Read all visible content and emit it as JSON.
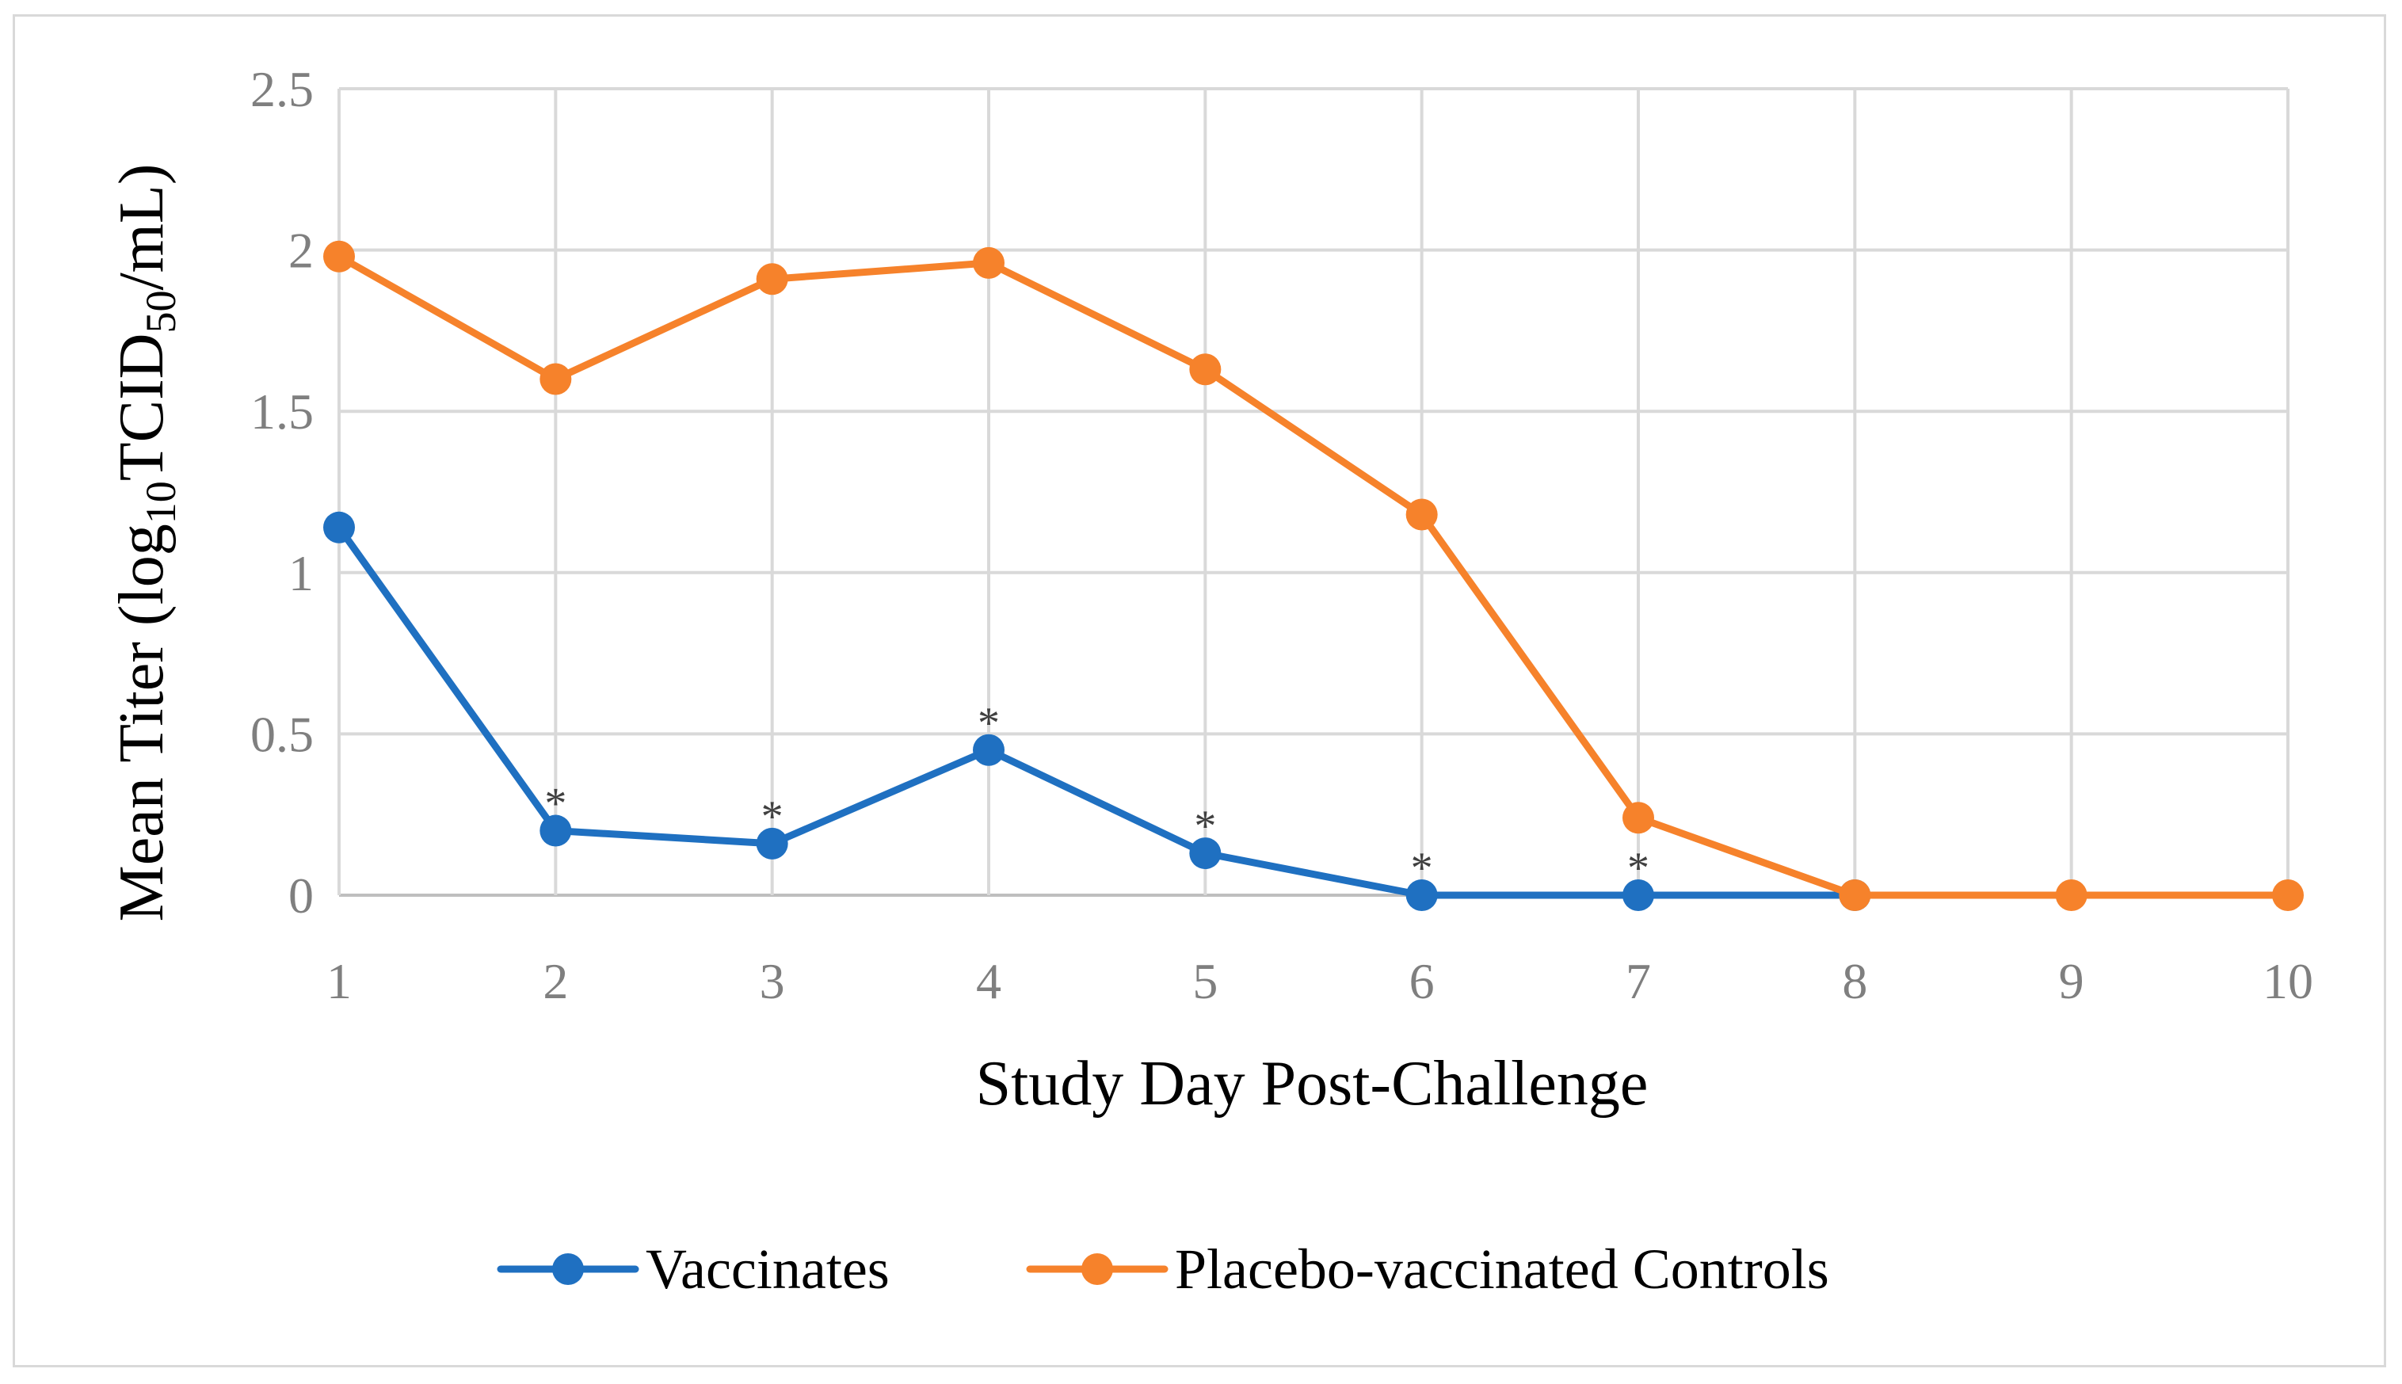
{
  "chart_data": {
    "type": "line",
    "title": "",
    "xlabel": "Study Day Post-Challenge",
    "ylabel_main": "Mean Titer (log",
    "ylabel_sub1": "10",
    "ylabel_mid": "TCID",
    "ylabel_sub2": "50",
    "ylabel_end": "/mL)",
    "x": [
      1,
      2,
      3,
      4,
      5,
      6,
      7,
      8,
      9,
      10
    ],
    "x_tick_labels": [
      "1",
      "2",
      "3",
      "4",
      "5",
      "6",
      "7",
      "8",
      "9",
      "10"
    ],
    "y_tick_labels": [
      "0",
      "0.5",
      "1",
      "1.5",
      "2",
      "2.5"
    ],
    "ylim": [
      0,
      2.5
    ],
    "yticks": [
      0,
      0.5,
      1,
      1.5,
      2,
      2.5
    ],
    "grid": true,
    "legend_position": "bottom",
    "series": [
      {
        "name": "Vaccinates",
        "color": "#1f70c1",
        "x": [
          1,
          2,
          3,
          4,
          5,
          6,
          7,
          8
        ],
        "values": [
          1.14,
          0.2,
          0.16,
          0.45,
          0.13,
          0.0,
          0.0,
          0.0
        ]
      },
      {
        "name": "Placebo-vaccinated Controls",
        "color": "#f6822b",
        "x": [
          1,
          2,
          3,
          4,
          5,
          6,
          7,
          8,
          9,
          10
        ],
        "values": [
          1.98,
          1.6,
          1.91,
          1.96,
          1.63,
          1.18,
          0.24,
          0.0,
          0.0,
          0.0
        ]
      }
    ],
    "annotations": [
      {
        "text": "*",
        "x": 2,
        "series": "Vaccinates"
      },
      {
        "text": "*",
        "x": 3,
        "series": "Vaccinates"
      },
      {
        "text": "*",
        "x": 4,
        "series": "Vaccinates"
      },
      {
        "text": "*",
        "x": 5,
        "series": "Vaccinates"
      },
      {
        "text": "*",
        "x": 6,
        "series": "Vaccinates"
      },
      {
        "text": "*",
        "x": 7,
        "series": "Vaccinates"
      }
    ]
  },
  "colors": {
    "grid": "#d9d9d9",
    "axis": "#bfbfbf"
  }
}
